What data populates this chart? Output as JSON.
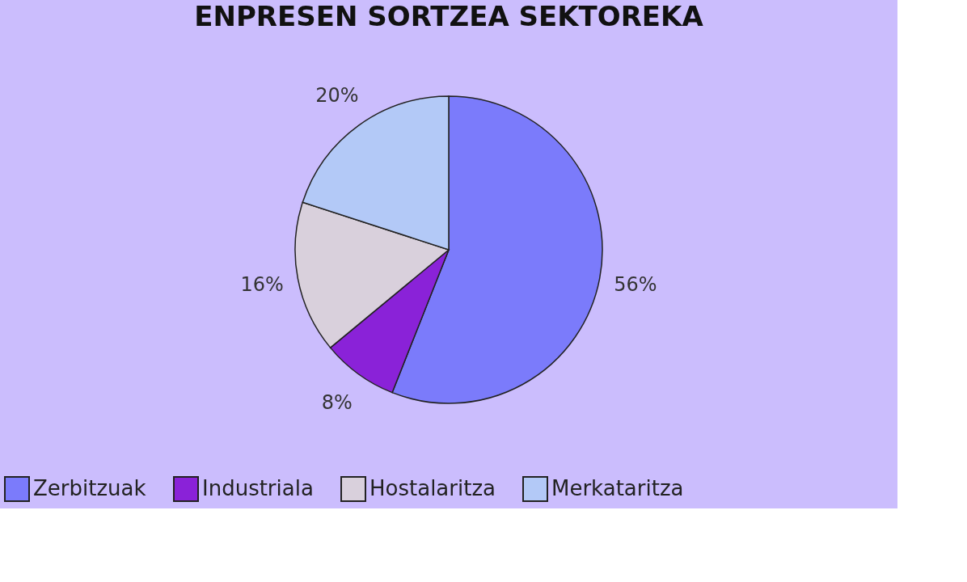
{
  "chart_data": {
    "type": "pie",
    "title": "ENPRESEN SORTZEA SEKTOREKA",
    "categories": [
      "Zerbitzuak",
      "Industriala",
      "Hostalaritza",
      "Merkataritza"
    ],
    "values": [
      56,
      8,
      16,
      20
    ],
    "value_labels": [
      "56%",
      "8%",
      "16%",
      "20%"
    ],
    "colors": [
      "#7b7bfb",
      "#8a22d8",
      "#d9d0dc",
      "#b3c9f7"
    ],
    "legend": "bottom"
  }
}
